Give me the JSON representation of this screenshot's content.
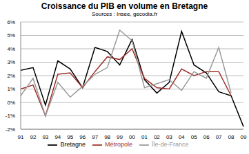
{
  "chart_data": {
    "type": "line",
    "title": "Croissance du PIB en volume en Bretagne",
    "subtitle": "Sources : Insee, gecodia.fr",
    "categories": [
      "91",
      "92",
      "93",
      "94",
      "95",
      "96",
      "97",
      "98",
      "99",
      "00",
      "01",
      "02",
      "03",
      "04",
      "05",
      "06",
      "07",
      "08",
      "09"
    ],
    "series": [
      {
        "name": "Bretagne",
        "color": "#000000",
        "values": [
          2.4,
          2.6,
          -0.2,
          3.1,
          2.5,
          1.1,
          4.1,
          3.8,
          2.8,
          4.7,
          1.7,
          0.7,
          1.5,
          5.3,
          2.8,
          2.2,
          0.8,
          0.5,
          -1.8
        ]
      },
      {
        "name": "Métropole",
        "color": "#a0302a",
        "values": [
          1.0,
          1.3,
          -1.0,
          2.1,
          2.2,
          1.1,
          2.3,
          3.4,
          3.2,
          4.0,
          1.8,
          1.1,
          1.0,
          2.5,
          2.0,
          2.3,
          2.3,
          0.5,
          null
        ]
      },
      {
        "name": "Île-de-France",
        "color": "#999999",
        "values": [
          0.5,
          1.8,
          -1.0,
          1.5,
          0.4,
          1.2,
          2.1,
          2.6,
          5.4,
          4.6,
          1.1,
          1.4,
          1.7,
          0.9,
          2.3,
          1.8,
          4.1,
          0.7,
          null
        ]
      }
    ],
    "ylim": [
      -2,
      6
    ],
    "yticks": [
      {
        "value": -2,
        "label": "-2%"
      },
      {
        "value": -1,
        "label": "-1%"
      },
      {
        "value": 0,
        "label": "0%"
      },
      {
        "value": 1,
        "label": "1%"
      },
      {
        "value": 2,
        "label": "2%"
      },
      {
        "value": 3,
        "label": "3%"
      },
      {
        "value": 4,
        "label": "4%"
      },
      {
        "value": 5,
        "label": "5%"
      },
      {
        "value": 6,
        "label": "6%"
      }
    ],
    "grid": true,
    "legend": "bottom"
  }
}
